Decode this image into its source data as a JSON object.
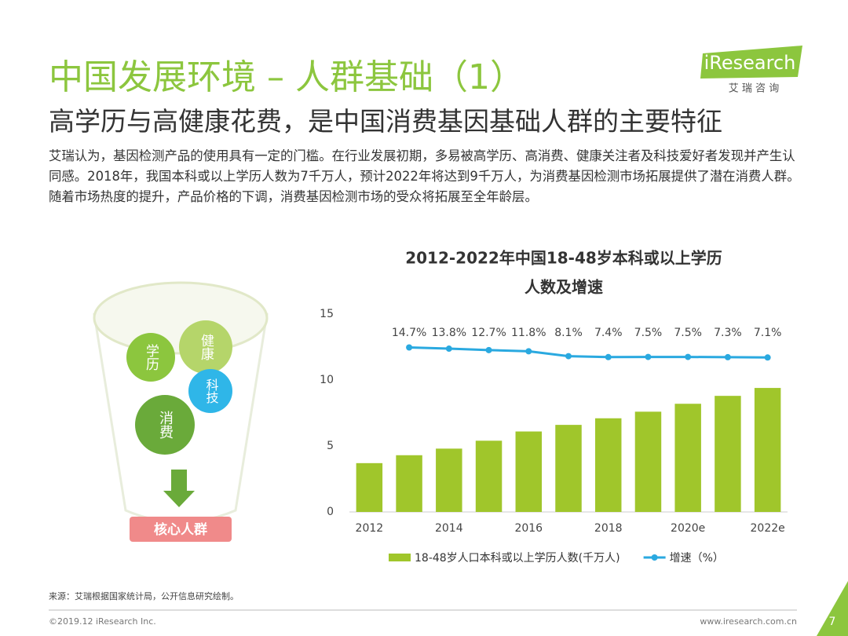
{
  "header": {
    "title": "中国发展环境 – 人群基础（1）",
    "subtitle": "高学历与高健康花费，是中国消费基因基础人群的主要特征",
    "logo": "iResearch",
    "logo_cn": "艾 瑞 咨 询"
  },
  "body": {
    "paragraph": "艾瑞认为，基因检测产品的使用具有一定的门槛。在行业发展初期，多易被高学历、高消费、健康关注者及科技爱好者发现并产生认同感。2018年，我国本科或以上学历人数为7千万人，预计2022年将达到9千万人，为消费基因检测市场拓展提供了潜在消费人群。随着市场热度的提升，产品价格的下调，消费基因检测市场的受众将拓展至全年龄层。"
  },
  "diagram": {
    "circles": [
      "学历",
      "健康",
      "科技",
      "消费"
    ],
    "result": "核心人群"
  },
  "chart_data": {
    "type": "bar",
    "title_lines": [
      "2012-2022年中国18-48岁本科或以上学历",
      "人数及增速"
    ],
    "categories": [
      "2012",
      null,
      "2014",
      null,
      "2016",
      null,
      "2018",
      null,
      "2020e",
      null,
      "2022e"
    ],
    "series": [
      {
        "name": "18-48岁人口本科或以上学历人数(千万人)",
        "color": "#a0c62b",
        "type": "bar",
        "values": [
          3.7,
          4.3,
          4.8,
          5.4,
          6.1,
          6.6,
          7.1,
          7.6,
          8.2,
          8.8,
          9.4
        ]
      },
      {
        "name": "增速（%）",
        "color": "#2aa9e0",
        "type": "line",
        "axis": "y2",
        "values": [
          null,
          14.7,
          13.8,
          12.7,
          11.8,
          8.1,
          7.4,
          7.5,
          7.5,
          7.3,
          7.1
        ],
        "value_labels": [
          null,
          "14.7%",
          "13.8%",
          "12.7%",
          "11.8%",
          "8.1%",
          "7.4%",
          "7.5%",
          "7.5%",
          "7.3%",
          "7.1%"
        ]
      }
    ],
    "ylim": [
      0,
      15
    ],
    "yticks": [
      0,
      5,
      10,
      15
    ],
    "y2lim": [
      -110,
      40
    ],
    "grid": false
  },
  "footer": {
    "source": "来源：艾瑞根据国家统计局，公开信息研究绘制。",
    "copyright": "©2019.12 iResearch Inc.",
    "url": "www.iresearch.com.cn",
    "page": "7"
  }
}
